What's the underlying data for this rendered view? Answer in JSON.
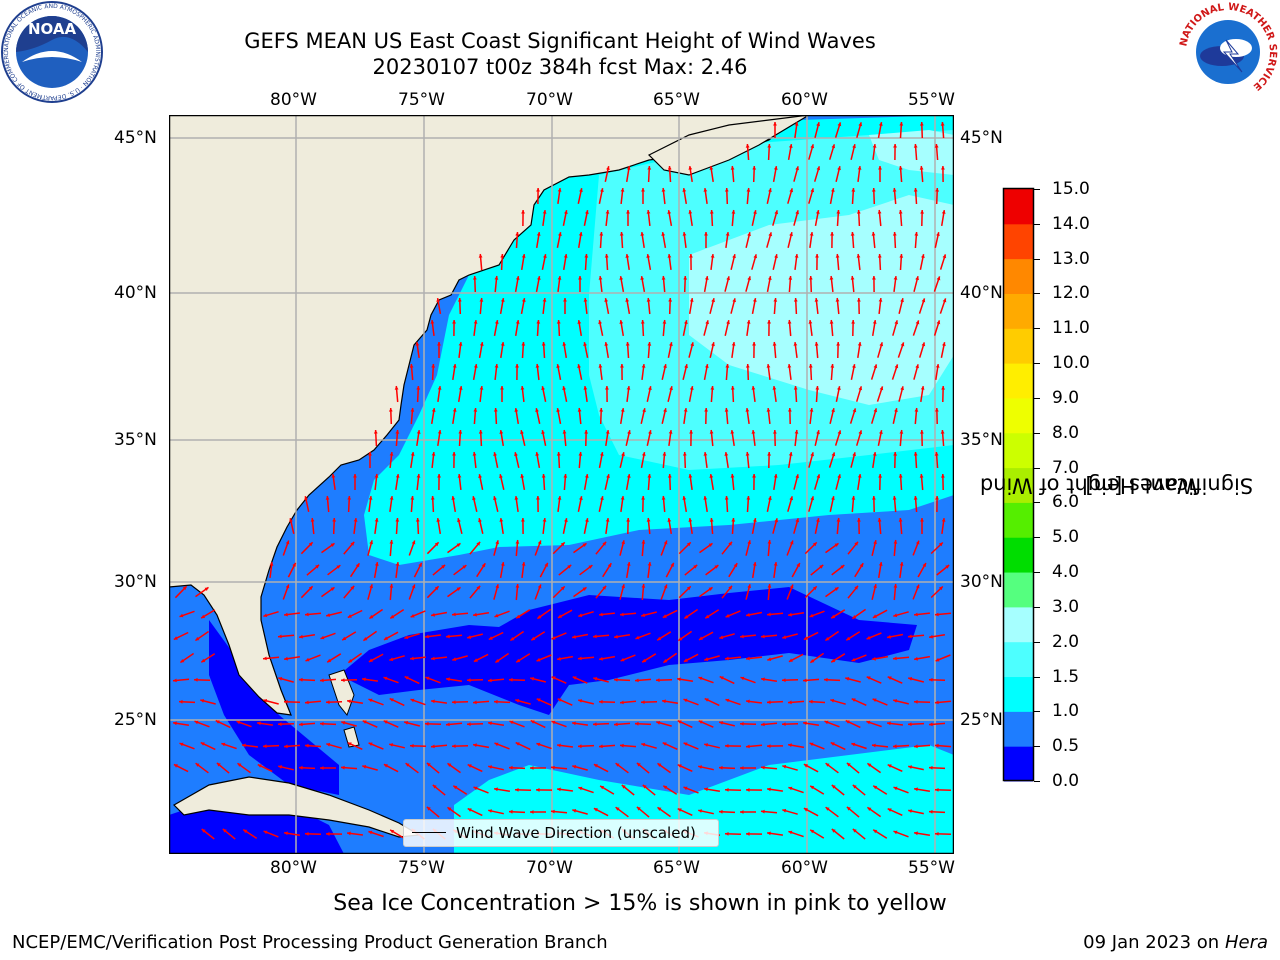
{
  "header": {
    "title_line1": "GEFS MEAN US East Coast Significant Height of Wind Waves",
    "title_line2": "20230107 t00z 384h fcst   Max: 2.46"
  },
  "logos": {
    "noaa_text": "NOAA",
    "noaa_ring_text": "NATIONAL OCEANIC AND ATMOSPHERIC ADMINISTRATION · U.S. DEPARTMENT OF COMMERCE",
    "nws_ring_text": "NATIONAL WEATHER SERVICE"
  },
  "map": {
    "lon_labels": [
      "80°W",
      "75°W",
      "70°W",
      "65°W",
      "60°W",
      "55°W"
    ],
    "lat_labels": [
      "45°N",
      "40°N",
      "35°N",
      "30°N",
      "25°N"
    ],
    "land_color": "#efecdc",
    "grid_color": "#b0b0b0",
    "arrow_color": "#ff0000",
    "legend_text": "Wind Wave Direction (unscaled)"
  },
  "colorbar": {
    "label_line1": "Significant Height of Wind",
    "label_line2": "Waves [m]",
    "ticks": [
      "0.0",
      "0.5",
      "1.0",
      "1.5",
      "2.0",
      "3.0",
      "4.0",
      "5.0",
      "6.0",
      "7.0",
      "8.0",
      "9.0",
      "10.0",
      "11.0",
      "12.0",
      "13.0",
      "14.0",
      "15.0"
    ],
    "colors": [
      "#0000ff",
      "#1e7dff",
      "#00ffff",
      "#4dffff",
      "#a6ffff",
      "#55ff7f",
      "#00dd00",
      "#55ee00",
      "#aaee00",
      "#ccff00",
      "#eeff00",
      "#ffee00",
      "#ffcc00",
      "#ffaa00",
      "#ff8800",
      "#ff4400",
      "#ee0000"
    ]
  },
  "chart_data": {
    "type": "heatmap",
    "title": "GEFS MEAN US East Coast Significant Height of Wind Waves",
    "subtitle": "20230107 t00z 384h fcst   Max: 2.46",
    "max_value": 2.46,
    "units": "m",
    "lon_range": [
      -85,
      -54.5
    ],
    "lat_range": [
      20.5,
      46
    ],
    "colorbar_levels": [
      0.0,
      0.5,
      1.0,
      1.5,
      2.0,
      3.0,
      4.0,
      5.0,
      6.0,
      7.0,
      8.0,
      9.0,
      10.0,
      11.0,
      12.0,
      13.0,
      14.0,
      15.0
    ],
    "grid": true
  },
  "footer": {
    "note": "Sea Ice Concentration > 15% is shown in pink to yellow",
    "left": "NCEP/EMC/Verification Post Processing Product Generation Branch",
    "right_date": "09 Jan 2023 on ",
    "right_host": "Hera"
  }
}
